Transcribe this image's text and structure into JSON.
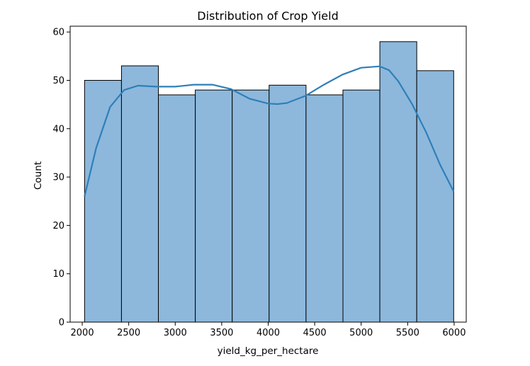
{
  "chart_data": {
    "type": "bar",
    "title": "Distribution of Crop Yield",
    "xlabel": "yield_kg_per_hectare",
    "ylabel": "Count",
    "xlim": [
      1870,
      6130
    ],
    "ylim": [
      0,
      61.2
    ],
    "xticks": [
      2000,
      2500,
      3000,
      3500,
      4000,
      4500,
      5000,
      5500,
      6000
    ],
    "yticks": [
      0,
      10,
      20,
      30,
      40,
      50,
      60
    ],
    "bins": [
      {
        "x0": 2025,
        "x1": 2422,
        "count": 50
      },
      {
        "x0": 2422,
        "x1": 2819,
        "count": 53
      },
      {
        "x0": 2819,
        "x1": 3216,
        "count": 47
      },
      {
        "x0": 3216,
        "x1": 3613,
        "count": 48
      },
      {
        "x0": 3613,
        "x1": 4010,
        "count": 48
      },
      {
        "x0": 4010,
        "x1": 4407,
        "count": 49
      },
      {
        "x0": 4407,
        "x1": 4804,
        "count": 47
      },
      {
        "x0": 4804,
        "x1": 5201,
        "count": 48
      },
      {
        "x0": 5201,
        "x1": 5598,
        "count": 58
      },
      {
        "x0": 5598,
        "x1": 5995,
        "count": 52
      }
    ],
    "kde": {
      "x": [
        2025,
        2150,
        2300,
        2450,
        2600,
        2800,
        3000,
        3200,
        3400,
        3600,
        3800,
        4000,
        4100,
        4200,
        4400,
        4600,
        4800,
        5000,
        5200,
        5300,
        5400,
        5550,
        5700,
        5850,
        5995
      ],
      "y": [
        26,
        36,
        44.5,
        48,
        48.9,
        48.7,
        48.7,
        49.1,
        49.1,
        48.2,
        46.2,
        45.2,
        45.1,
        45.3,
        46.8,
        49.1,
        51.2,
        52.6,
        52.9,
        52.1,
        49.8,
        45,
        39.2,
        32.5,
        27
      ]
    },
    "grid": false,
    "colors": {
      "bar_fill": "#8db8dc",
      "bar_edge": "#000000",
      "kde_line": "#2f7fb8"
    }
  }
}
